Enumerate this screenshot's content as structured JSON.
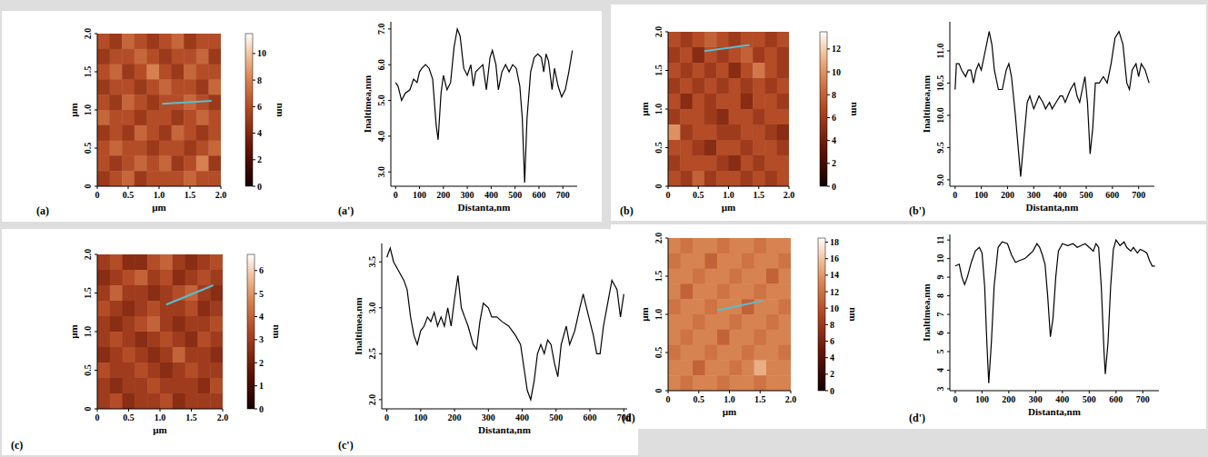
{
  "chart_data": [
    {
      "type": "heatmap",
      "panel": "(a)",
      "xlabel": "µm",
      "ylabel": "µm",
      "xlim": [
        0,
        2
      ],
      "ylim": [
        0,
        2
      ],
      "xticks": [
        0,
        0.5,
        {
          "value": 1,
          "label": "1.0"
        },
        1.5,
        {
          "value": 2,
          "label": "2.0"
        }
      ],
      "yticks": [
        0,
        0.5,
        {
          "value": 1,
          "label": "1.0"
        },
        1.5,
        {
          "value": 2,
          "label": "2.0"
        }
      ],
      "cells": [
        [
          6,
          5,
          7,
          6,
          5,
          6,
          7,
          5,
          6,
          6
        ],
        [
          5,
          6,
          6,
          7,
          6,
          5,
          6,
          6,
          7,
          5
        ],
        [
          6,
          7,
          5,
          6,
          8,
          6,
          5,
          7,
          6,
          6
        ],
        [
          5,
          6,
          6,
          5,
          6,
          7,
          6,
          6,
          5,
          7
        ],
        [
          6,
          5,
          7,
          6,
          5,
          6,
          6,
          7,
          6,
          5
        ],
        [
          7,
          6,
          6,
          5,
          6,
          6,
          5,
          6,
          7,
          6
        ],
        [
          5,
          6,
          5,
          7,
          6,
          5,
          7,
          6,
          5,
          6
        ],
        [
          6,
          7,
          6,
          6,
          5,
          6,
          6,
          5,
          6,
          7
        ],
        [
          6,
          5,
          6,
          7,
          6,
          7,
          5,
          6,
          8,
          5
        ],
        [
          5,
          6,
          7,
          5,
          6,
          6,
          6,
          7,
          6,
          6
        ]
      ],
      "colorbar": {
        "label": "nm",
        "range": [
          0,
          11.5
        ],
        "ticks": [
          0,
          2,
          4,
          6,
          8,
          10
        ]
      },
      "profile_line": {
        "x": [
          1.05,
          1.85
        ],
        "y": [
          1.08,
          1.12
        ]
      }
    },
    {
      "type": "line",
      "panel": "(a')",
      "xlabel": "Distanta,nm",
      "ylabel": "Inaltimea,nm",
      "color": "#000000",
      "xlim": [
        -20,
        760
      ],
      "ylim": [
        2.6,
        7.2
      ],
      "xticks": [
        0,
        100,
        200,
        300,
        400,
        500,
        600,
        700
      ],
      "yticks": [
        {
          "value": 3,
          "label": "3.0"
        },
        {
          "value": 4,
          "label": "4.0"
        },
        {
          "value": 5,
          "label": "5.0"
        },
        {
          "value": 6,
          "label": "6.0"
        },
        {
          "value": 7,
          "label": "7.0"
        }
      ],
      "x": [
        0,
        10,
        25,
        40,
        60,
        75,
        90,
        100,
        110,
        125,
        140,
        155,
        170,
        178,
        190,
        200,
        215,
        230,
        245,
        258,
        270,
        285,
        300,
        315,
        325,
        335,
        350,
        365,
        380,
        395,
        405,
        420,
        430,
        445,
        460,
        475,
        490,
        505,
        520,
        530,
        540,
        550,
        565,
        580,
        595,
        610,
        620,
        630,
        640,
        655,
        665,
        680,
        695,
        710,
        725,
        740
      ],
      "values": [
        5.5,
        5.4,
        5.0,
        5.2,
        5.3,
        5.6,
        5.5,
        5.8,
        5.9,
        6.0,
        5.9,
        5.6,
        4.3,
        3.9,
        5.2,
        5.7,
        5.3,
        5.5,
        6.5,
        7.0,
        6.8,
        5.9,
        5.7,
        6.0,
        5.4,
        5.8,
        5.9,
        6.0,
        5.3,
        6.2,
        6.4,
        6.0,
        5.3,
        5.8,
        6.0,
        5.8,
        6.0,
        5.9,
        5.4,
        4.5,
        2.7,
        4.5,
        5.8,
        6.2,
        6.3,
        6.2,
        5.8,
        6.3,
        6.1,
        5.3,
        5.9,
        5.4,
        5.1,
        5.3,
        5.8,
        6.4
      ]
    },
    {
      "type": "heatmap",
      "panel": "(b)",
      "xlabel": "µm",
      "ylabel": "µm",
      "xlim": [
        0,
        2
      ],
      "ylim": [
        0,
        2
      ],
      "xticks": [
        0,
        0.5,
        {
          "value": 1,
          "label": "1.0"
        },
        1.5,
        {
          "value": 2,
          "label": "2.0"
        }
      ],
      "yticks": [
        0,
        0.5,
        {
          "value": 1,
          "label": "1.0"
        },
        1.5,
        {
          "value": 2,
          "label": "2.0"
        }
      ],
      "cells": [
        [
          7,
          6,
          7,
          8,
          7,
          6,
          7,
          7,
          6,
          7
        ],
        [
          6,
          7,
          5,
          7,
          6,
          7,
          8,
          6,
          7,
          6
        ],
        [
          7,
          6,
          7,
          6,
          7,
          5,
          7,
          9,
          7,
          6
        ],
        [
          6,
          7,
          6,
          7,
          6,
          7,
          6,
          7,
          6,
          7
        ],
        [
          7,
          5,
          7,
          6,
          7,
          7,
          5,
          7,
          7,
          6
        ],
        [
          6,
          7,
          7,
          6,
          5,
          7,
          7,
          6,
          7,
          7
        ],
        [
          10,
          6,
          7,
          7,
          6,
          6,
          7,
          7,
          6,
          5
        ],
        [
          7,
          7,
          6,
          5,
          7,
          7,
          6,
          7,
          7,
          6
        ],
        [
          6,
          7,
          7,
          7,
          6,
          5,
          7,
          6,
          7,
          7
        ],
        [
          7,
          6,
          8,
          6,
          7,
          7,
          6,
          7,
          6,
          7
        ]
      ],
      "colorbar": {
        "label": "nm",
        "range": [
          0,
          13.5
        ],
        "ticks": [
          0,
          2,
          4,
          6,
          8,
          10,
          12
        ]
      },
      "profile_line": {
        "x": [
          0.6,
          1.35
        ],
        "y": [
          1.75,
          1.83
        ]
      }
    },
    {
      "type": "line",
      "panel": "(b')",
      "xlabel": "Distanta,nm",
      "ylabel": "Inaltimea,nm",
      "color": "#000000",
      "xlim": [
        -20,
        760
      ],
      "ylim": [
        8.9,
        11.45
      ],
      "xticks": [
        0,
        100,
        200,
        300,
        400,
        500,
        600,
        700
      ],
      "yticks": [
        {
          "value": 9,
          "label": "9.0"
        },
        9.5,
        {
          "value": 10,
          "label": "10.0"
        },
        10.5,
        {
          "value": 11,
          "label": "11.0"
        }
      ],
      "x": [
        0,
        5,
        15,
        25,
        40,
        50,
        60,
        70,
        80,
        90,
        100,
        110,
        120,
        130,
        140,
        150,
        165,
        180,
        195,
        205,
        215,
        230,
        250,
        262,
        275,
        285,
        300,
        310,
        320,
        335,
        345,
        360,
        370,
        385,
        400,
        410,
        420,
        430,
        440,
        455,
        465,
        475,
        485,
        495,
        505,
        515,
        525,
        535,
        550,
        565,
        580,
        595,
        610,
        625,
        640,
        655,
        665,
        675,
        690,
        700,
        710,
        725,
        740
      ],
      "values": [
        10.4,
        10.8,
        10.8,
        10.7,
        10.6,
        10.7,
        10.7,
        10.5,
        10.7,
        10.8,
        10.7,
        10.9,
        11.1,
        11.3,
        11.1,
        10.7,
        10.4,
        10.4,
        10.7,
        10.8,
        10.6,
        10.0,
        9.05,
        9.6,
        10.2,
        10.3,
        10.1,
        10.2,
        10.3,
        10.2,
        10.1,
        10.2,
        10.1,
        10.2,
        10.3,
        10.3,
        10.2,
        10.3,
        10.4,
        10.5,
        10.3,
        10.2,
        10.4,
        10.6,
        10.2,
        9.4,
        9.8,
        10.5,
        10.5,
        10.6,
        10.5,
        10.8,
        11.2,
        11.3,
        11.1,
        10.5,
        10.4,
        10.7,
        10.8,
        10.6,
        10.8,
        10.7,
        10.5
      ]
    },
    {
      "type": "heatmap",
      "panel": "(c)",
      "xlabel": "µm",
      "ylabel": "µm",
      "xlim": [
        0,
        2
      ],
      "ylim": [
        0,
        2
      ],
      "xticks": [
        0,
        0.5,
        {
          "value": 1,
          "label": "1.0"
        },
        1.5,
        {
          "value": 2,
          "label": "2.0"
        }
      ],
      "yticks": [
        0,
        0.5,
        {
          "value": 1,
          "label": "1.0"
        },
        1.5,
        {
          "value": 2,
          "label": "2.0"
        }
      ],
      "cells": [
        [
          3,
          3.5,
          2.5,
          2.5,
          3.5,
          4,
          3,
          2.5,
          3,
          3.5
        ],
        [
          2.5,
          3,
          3.5,
          4,
          3,
          3.5,
          2.5,
          3,
          3.5,
          3
        ],
        [
          3,
          4,
          3,
          3,
          2.5,
          3,
          3.5,
          4,
          3,
          2.5
        ],
        [
          3.5,
          3,
          2.5,
          3,
          3.5,
          3,
          3,
          3.5,
          2.5,
          3
        ],
        [
          3,
          2.5,
          3,
          3.5,
          4,
          3,
          2.5,
          3,
          3,
          3.5
        ],
        [
          3,
          3.5,
          3,
          2.5,
          3,
          3.5,
          3,
          2.5,
          3.5,
          3
        ],
        [
          2.5,
          3,
          3.5,
          3,
          2.5,
          3,
          4,
          3,
          3,
          2.5
        ],
        [
          3.5,
          3,
          3,
          3.5,
          3,
          2.5,
          3,
          3.5,
          3,
          3
        ],
        [
          3,
          2.5,
          3,
          3,
          3.5,
          3,
          3,
          3,
          2.5,
          3.5
        ],
        [
          3,
          3.5,
          2.5,
          3,
          3,
          3.5,
          2.5,
          3,
          3,
          3
        ]
      ],
      "colorbar": {
        "label": "nm",
        "range": [
          0,
          6.7
        ],
        "ticks": [
          0,
          1,
          2,
          3,
          4,
          5,
          6
        ]
      },
      "profile_line": {
        "x": [
          1.1,
          1.85
        ],
        "y": [
          1.35,
          1.6
        ]
      }
    },
    {
      "type": "line",
      "panel": "(c')",
      "xlabel": "Distanta,nm",
      "ylabel": "Inaltimea,nm",
      "color": "#000000",
      "xlim": [
        -15,
        710
      ],
      "ylim": [
        1.9,
        3.7
      ],
      "xticks": [
        0,
        100,
        200,
        300,
        400,
        500,
        600,
        700
      ],
      "yticks": [
        {
          "value": 2,
          "label": "2.0"
        },
        2.5,
        {
          "value": 3,
          "label": "3.0"
        },
        3.5
      ],
      "x": [
        0,
        10,
        20,
        35,
        50,
        60,
        70,
        80,
        90,
        100,
        110,
        120,
        130,
        140,
        150,
        160,
        170,
        180,
        190,
        200,
        210,
        220,
        230,
        240,
        255,
        265,
        275,
        285,
        300,
        310,
        325,
        340,
        360,
        380,
        395,
        405,
        415,
        425,
        435,
        445,
        455,
        465,
        475,
        485,
        495,
        505,
        515,
        530,
        540,
        555,
        570,
        580,
        590,
        600,
        610,
        620,
        630,
        640,
        655,
        665,
        680,
        690,
        700
      ],
      "values": [
        3.55,
        3.65,
        3.5,
        3.4,
        3.3,
        3.2,
        2.9,
        2.7,
        2.6,
        2.75,
        2.8,
        2.9,
        2.85,
        2.95,
        2.8,
        2.9,
        2.8,
        3.0,
        2.8,
        3.1,
        3.35,
        3.0,
        2.9,
        2.8,
        2.6,
        2.55,
        2.85,
        3.05,
        3.0,
        2.9,
        2.9,
        2.85,
        2.8,
        2.7,
        2.6,
        2.35,
        2.1,
        2.0,
        2.2,
        2.5,
        2.6,
        2.5,
        2.65,
        2.6,
        2.4,
        2.25,
        2.6,
        2.8,
        2.6,
        2.75,
        3.0,
        3.15,
        3.0,
        2.85,
        2.7,
        2.5,
        2.5,
        2.8,
        3.1,
        3.3,
        3.2,
        2.9,
        3.15
      ]
    },
    {
      "type": "heatmap",
      "panel": "(d)",
      "xlabel": "µm",
      "ylabel": "µm",
      "xlim": [
        0,
        2
      ],
      "ylim": [
        0,
        2
      ],
      "xticks": [
        0,
        0.5,
        {
          "value": 1,
          "label": "1.0"
        },
        1.5,
        {
          "value": 2,
          "label": "2.0"
        }
      ],
      "yticks": [
        0,
        0.5,
        {
          "value": 1,
          "label": "1.0"
        },
        1.5,
        {
          "value": 2,
          "label": "2.0"
        }
      ],
      "cells": [
        [
          13,
          12,
          13,
          13,
          12,
          13,
          13,
          12,
          13,
          13
        ],
        [
          12,
          13,
          13,
          11,
          13,
          13,
          12,
          13,
          13,
          12
        ],
        [
          13,
          13,
          12,
          13,
          13,
          12,
          13,
          13,
          11,
          13
        ],
        [
          13,
          11,
          13,
          13,
          12,
          13,
          13,
          12,
          13,
          13
        ],
        [
          12,
          13,
          13,
          12,
          13,
          13,
          11,
          13,
          13,
          12
        ],
        [
          13,
          13,
          12,
          13,
          13,
          12,
          13,
          13,
          12,
          13
        ],
        [
          13,
          12,
          13,
          13,
          11,
          13,
          13,
          12,
          13,
          13
        ],
        [
          12,
          13,
          13,
          12,
          13,
          13,
          12,
          13,
          13,
          12
        ],
        [
          13,
          13,
          11,
          13,
          13,
          12,
          13,
          15,
          13,
          13
        ],
        [
          13,
          12,
          13,
          13,
          12,
          13,
          13,
          12,
          13,
          13
        ]
      ],
      "colorbar": {
        "label": "nm",
        "range": [
          0,
          18.5
        ],
        "ticks": [
          0,
          2,
          4,
          6,
          8,
          10,
          12,
          14,
          16,
          18
        ]
      },
      "profile_line": {
        "x": [
          0.8,
          1.55
        ],
        "y": [
          1.05,
          1.18
        ]
      }
    },
    {
      "type": "line",
      "panel": "(d')",
      "xlabel": "Distanta,nm",
      "ylabel": "Inaltimea,nm",
      "color": "#000000",
      "xlim": [
        -20,
        760
      ],
      "ylim": [
        2.9,
        11.3
      ],
      "xticks": [
        0,
        100,
        200,
        300,
        400,
        500,
        600,
        700
      ],
      "yticks": [
        3,
        4,
        5,
        6,
        7,
        8,
        9,
        10,
        11
      ],
      "x": [
        0,
        15,
        25,
        35,
        45,
        60,
        75,
        90,
        100,
        110,
        118,
        125,
        135,
        145,
        160,
        175,
        195,
        210,
        225,
        240,
        260,
        275,
        290,
        305,
        315,
        325,
        335,
        345,
        355,
        365,
        375,
        385,
        400,
        420,
        440,
        455,
        470,
        485,
        500,
        515,
        525,
        535,
        545,
        555,
        560,
        570,
        580,
        590,
        600,
        615,
        630,
        640,
        655,
        665,
        680,
        690,
        705,
        715,
        725,
        735,
        745
      ],
      "values": [
        9.6,
        9.7,
        9.0,
        8.6,
        9.0,
        9.8,
        10.4,
        10.6,
        10.3,
        8.5,
        5.5,
        3.3,
        5.5,
        8.5,
        10.6,
        10.9,
        10.8,
        10.2,
        9.8,
        9.9,
        10.0,
        10.2,
        10.4,
        10.8,
        10.6,
        10.2,
        9.7,
        8.0,
        5.8,
        6.8,
        9.0,
        10.4,
        10.8,
        10.7,
        10.8,
        10.6,
        10.7,
        10.8,
        10.6,
        10.4,
        10.8,
        10.6,
        8.5,
        5.0,
        3.8,
        5.5,
        8.5,
        10.5,
        11.0,
        10.7,
        10.9,
        10.6,
        10.4,
        10.6,
        10.3,
        10.5,
        10.4,
        10.3,
        9.9,
        9.6,
        9.6
      ]
    }
  ]
}
